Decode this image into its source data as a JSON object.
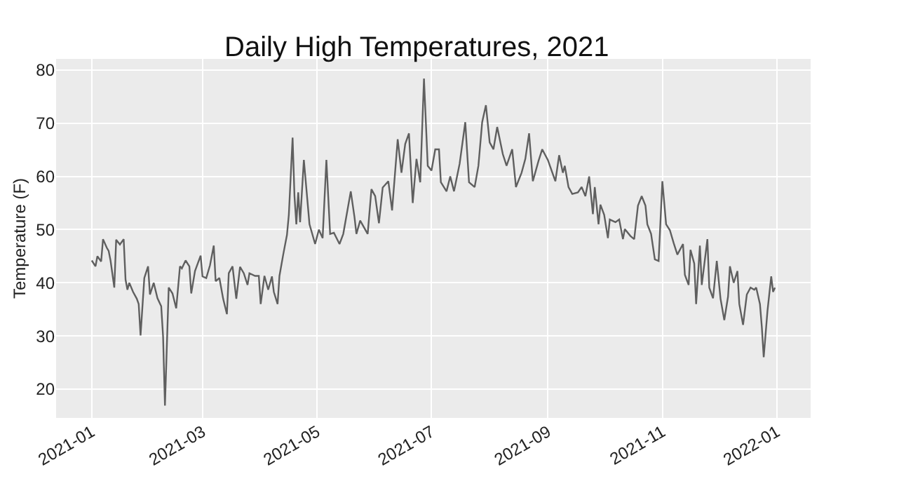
{
  "chart_data": {
    "type": "line",
    "title": "Daily High Temperatures, 2021",
    "ylabel": "Temperature (F)",
    "x": [
      "2021-01-01",
      "2021-01-03",
      "2021-01-04",
      "2021-01-06",
      "2021-01-07",
      "2021-01-09",
      "2021-01-10",
      "2021-01-11",
      "2021-01-13",
      "2021-01-14",
      "2021-01-16",
      "2021-01-18",
      "2021-01-19",
      "2021-01-20",
      "2021-01-21",
      "2021-01-23",
      "2021-01-25",
      "2021-01-26",
      "2021-01-27",
      "2021-01-29",
      "2021-01-31",
      "2021-02-01",
      "2021-02-03",
      "2021-02-05",
      "2021-02-07",
      "2021-02-08",
      "2021-02-09",
      "2021-02-11",
      "2021-02-13",
      "2021-02-15",
      "2021-02-17",
      "2021-02-18",
      "2021-02-20",
      "2021-02-22",
      "2021-02-23",
      "2021-02-25",
      "2021-02-28",
      "2021-03-01",
      "2021-03-03",
      "2021-03-05",
      "2021-03-07",
      "2021-03-08",
      "2021-03-10",
      "2021-03-12",
      "2021-03-14",
      "2021-03-15",
      "2021-03-17",
      "2021-03-19",
      "2021-03-21",
      "2021-03-23",
      "2021-03-25",
      "2021-03-26",
      "2021-03-29",
      "2021-03-31",
      "2021-04-01",
      "2021-04-03",
      "2021-04-05",
      "2021-04-07",
      "2021-04-08",
      "2021-04-10",
      "2021-04-11",
      "2021-04-13",
      "2021-04-15",
      "2021-04-16",
      "2021-04-18",
      "2021-04-19",
      "2021-04-20",
      "2021-04-21",
      "2021-04-22",
      "2021-04-24",
      "2021-04-27",
      "2021-04-30",
      "2021-05-02",
      "2021-05-04",
      "2021-05-06",
      "2021-05-08",
      "2021-05-10",
      "2021-05-13",
      "2021-05-15",
      "2021-05-19",
      "2021-05-21",
      "2021-05-22",
      "2021-05-24",
      "2021-05-28",
      "2021-05-30",
      "2021-06-01",
      "2021-06-03",
      "2021-06-05",
      "2021-06-08",
      "2021-06-10",
      "2021-06-13",
      "2021-06-15",
      "2021-06-17",
      "2021-06-19",
      "2021-06-21",
      "2021-06-23",
      "2021-06-25",
      "2021-06-27",
      "2021-06-29",
      "2021-07-01",
      "2021-07-03",
      "2021-07-05",
      "2021-07-06",
      "2021-07-09",
      "2021-07-11",
      "2021-07-13",
      "2021-07-16",
      "2021-07-19",
      "2021-07-21",
      "2021-07-24",
      "2021-07-26",
      "2021-07-28",
      "2021-07-30",
      "2021-08-01",
      "2021-08-03",
      "2021-08-05",
      "2021-08-08",
      "2021-08-10",
      "2021-08-13",
      "2021-08-15",
      "2021-08-18",
      "2021-08-20",
      "2021-08-22",
      "2021-08-24",
      "2021-08-27",
      "2021-08-29",
      "2021-09-01",
      "2021-09-05",
      "2021-09-07",
      "2021-09-09",
      "2021-09-10",
      "2021-09-12",
      "2021-09-14",
      "2021-09-17",
      "2021-09-19",
      "2021-09-21",
      "2021-09-23",
      "2021-09-25",
      "2021-09-26",
      "2021-09-28",
      "2021-09-29",
      "2021-10-01",
      "2021-10-03",
      "2021-10-04",
      "2021-10-07",
      "2021-10-09",
      "2021-10-11",
      "2021-10-12",
      "2021-10-15",
      "2021-10-17",
      "2021-10-19",
      "2021-10-21",
      "2021-10-23",
      "2021-10-24",
      "2021-10-26",
      "2021-10-28",
      "2021-10-30",
      "2021-11-01",
      "2021-11-03",
      "2021-11-05",
      "2021-11-07",
      "2021-11-09",
      "2021-11-12",
      "2021-11-13",
      "2021-11-15",
      "2021-11-16",
      "2021-11-18",
      "2021-11-19",
      "2021-11-21",
      "2021-11-22",
      "2021-11-25",
      "2021-11-26",
      "2021-11-28",
      "2021-11-30",
      "2021-12-02",
      "2021-12-04",
      "2021-12-06",
      "2021-12-07",
      "2021-12-09",
      "2021-12-11",
      "2021-12-12",
      "2021-12-14",
      "2021-12-16",
      "2021-12-18",
      "2021-12-20",
      "2021-12-21",
      "2021-12-23",
      "2021-12-24",
      "2021-12-25",
      "2021-12-27",
      "2021-12-29",
      "2021-12-30",
      "2021-12-31"
    ],
    "series": [
      {
        "color": "#5f5f5f",
        "values": [
          44.2,
          43.1,
          45,
          44,
          48.2,
          46.6,
          46,
          44.2,
          39.1,
          48.1,
          47.2,
          48.2,
          40.6,
          38.7,
          40,
          38.3,
          37,
          36,
          30.1,
          40.9,
          43.1,
          37.8,
          40,
          37.1,
          35.6,
          29.9,
          16.9,
          39.1,
          38,
          35.2,
          43.1,
          42.7,
          44.2,
          43.1,
          38,
          42.2,
          45.1,
          41.2,
          40.9,
          43.3,
          47,
          40.3,
          40.9,
          37,
          34.1,
          41.8,
          43.1,
          37,
          43,
          41.8,
          39.6,
          41.8,
          41.3,
          41.3,
          36,
          41.3,
          38.7,
          41.2,
          38.3,
          36,
          41.3,
          45.3,
          49,
          52.8,
          67.3,
          56.3,
          51,
          57,
          51.4,
          63.1,
          51,
          47.3,
          50,
          48.4,
          63.1,
          49.2,
          49.4,
          47.3,
          49.2,
          57.2,
          52.3,
          49.2,
          51.7,
          49.2,
          57.6,
          56.3,
          51.2,
          57.9,
          59.1,
          53.6,
          67,
          60.7,
          66.1,
          68.1,
          55,
          63.3,
          58.9,
          78.4,
          62,
          61.1,
          65.1,
          65.1,
          58.9,
          57.2,
          60,
          57.2,
          62.4,
          70.2,
          58.9,
          58,
          62,
          70.2,
          73.4,
          66.4,
          65.1,
          69.3,
          64.2,
          62,
          65.1,
          58,
          60.7,
          63.3,
          68.1,
          59.1,
          62.9,
          65.1,
          63.1,
          59.1,
          64,
          60.7,
          62,
          58,
          56.7,
          57,
          58,
          56.3,
          60,
          52.9,
          58,
          51,
          54.7,
          52.8,
          48.4,
          51.9,
          51.4,
          51.9,
          48.2,
          50.1,
          48.8,
          48.2,
          54.5,
          56.3,
          54.5,
          51,
          49.2,
          44.4,
          44.1,
          59.1,
          51,
          49.9,
          47.5,
          45.3,
          47.3,
          41.5,
          39.6,
          46.2,
          43.6,
          36,
          47,
          39.6,
          48.2,
          39.1,
          37.1,
          44.1,
          37,
          33,
          37.4,
          43.1,
          40,
          42.2,
          36,
          32.1,
          37.8,
          39.1,
          38.7,
          39.1,
          36,
          31.7,
          26,
          34.7,
          41.2,
          38.3,
          39.1
        ]
      }
    ],
    "xlim": [
      "2020-12-13",
      "2022-01-19"
    ],
    "xticks": [
      "2021-01",
      "2021-03",
      "2021-05",
      "2021-07",
      "2021-09",
      "2021-11",
      "2022-01"
    ],
    "ylim": [
      14.6,
      82.1
    ],
    "yticks": [
      20,
      30,
      40,
      50,
      60,
      70,
      80
    ],
    "grid": true,
    "marker": "none",
    "line_style": "solid"
  }
}
